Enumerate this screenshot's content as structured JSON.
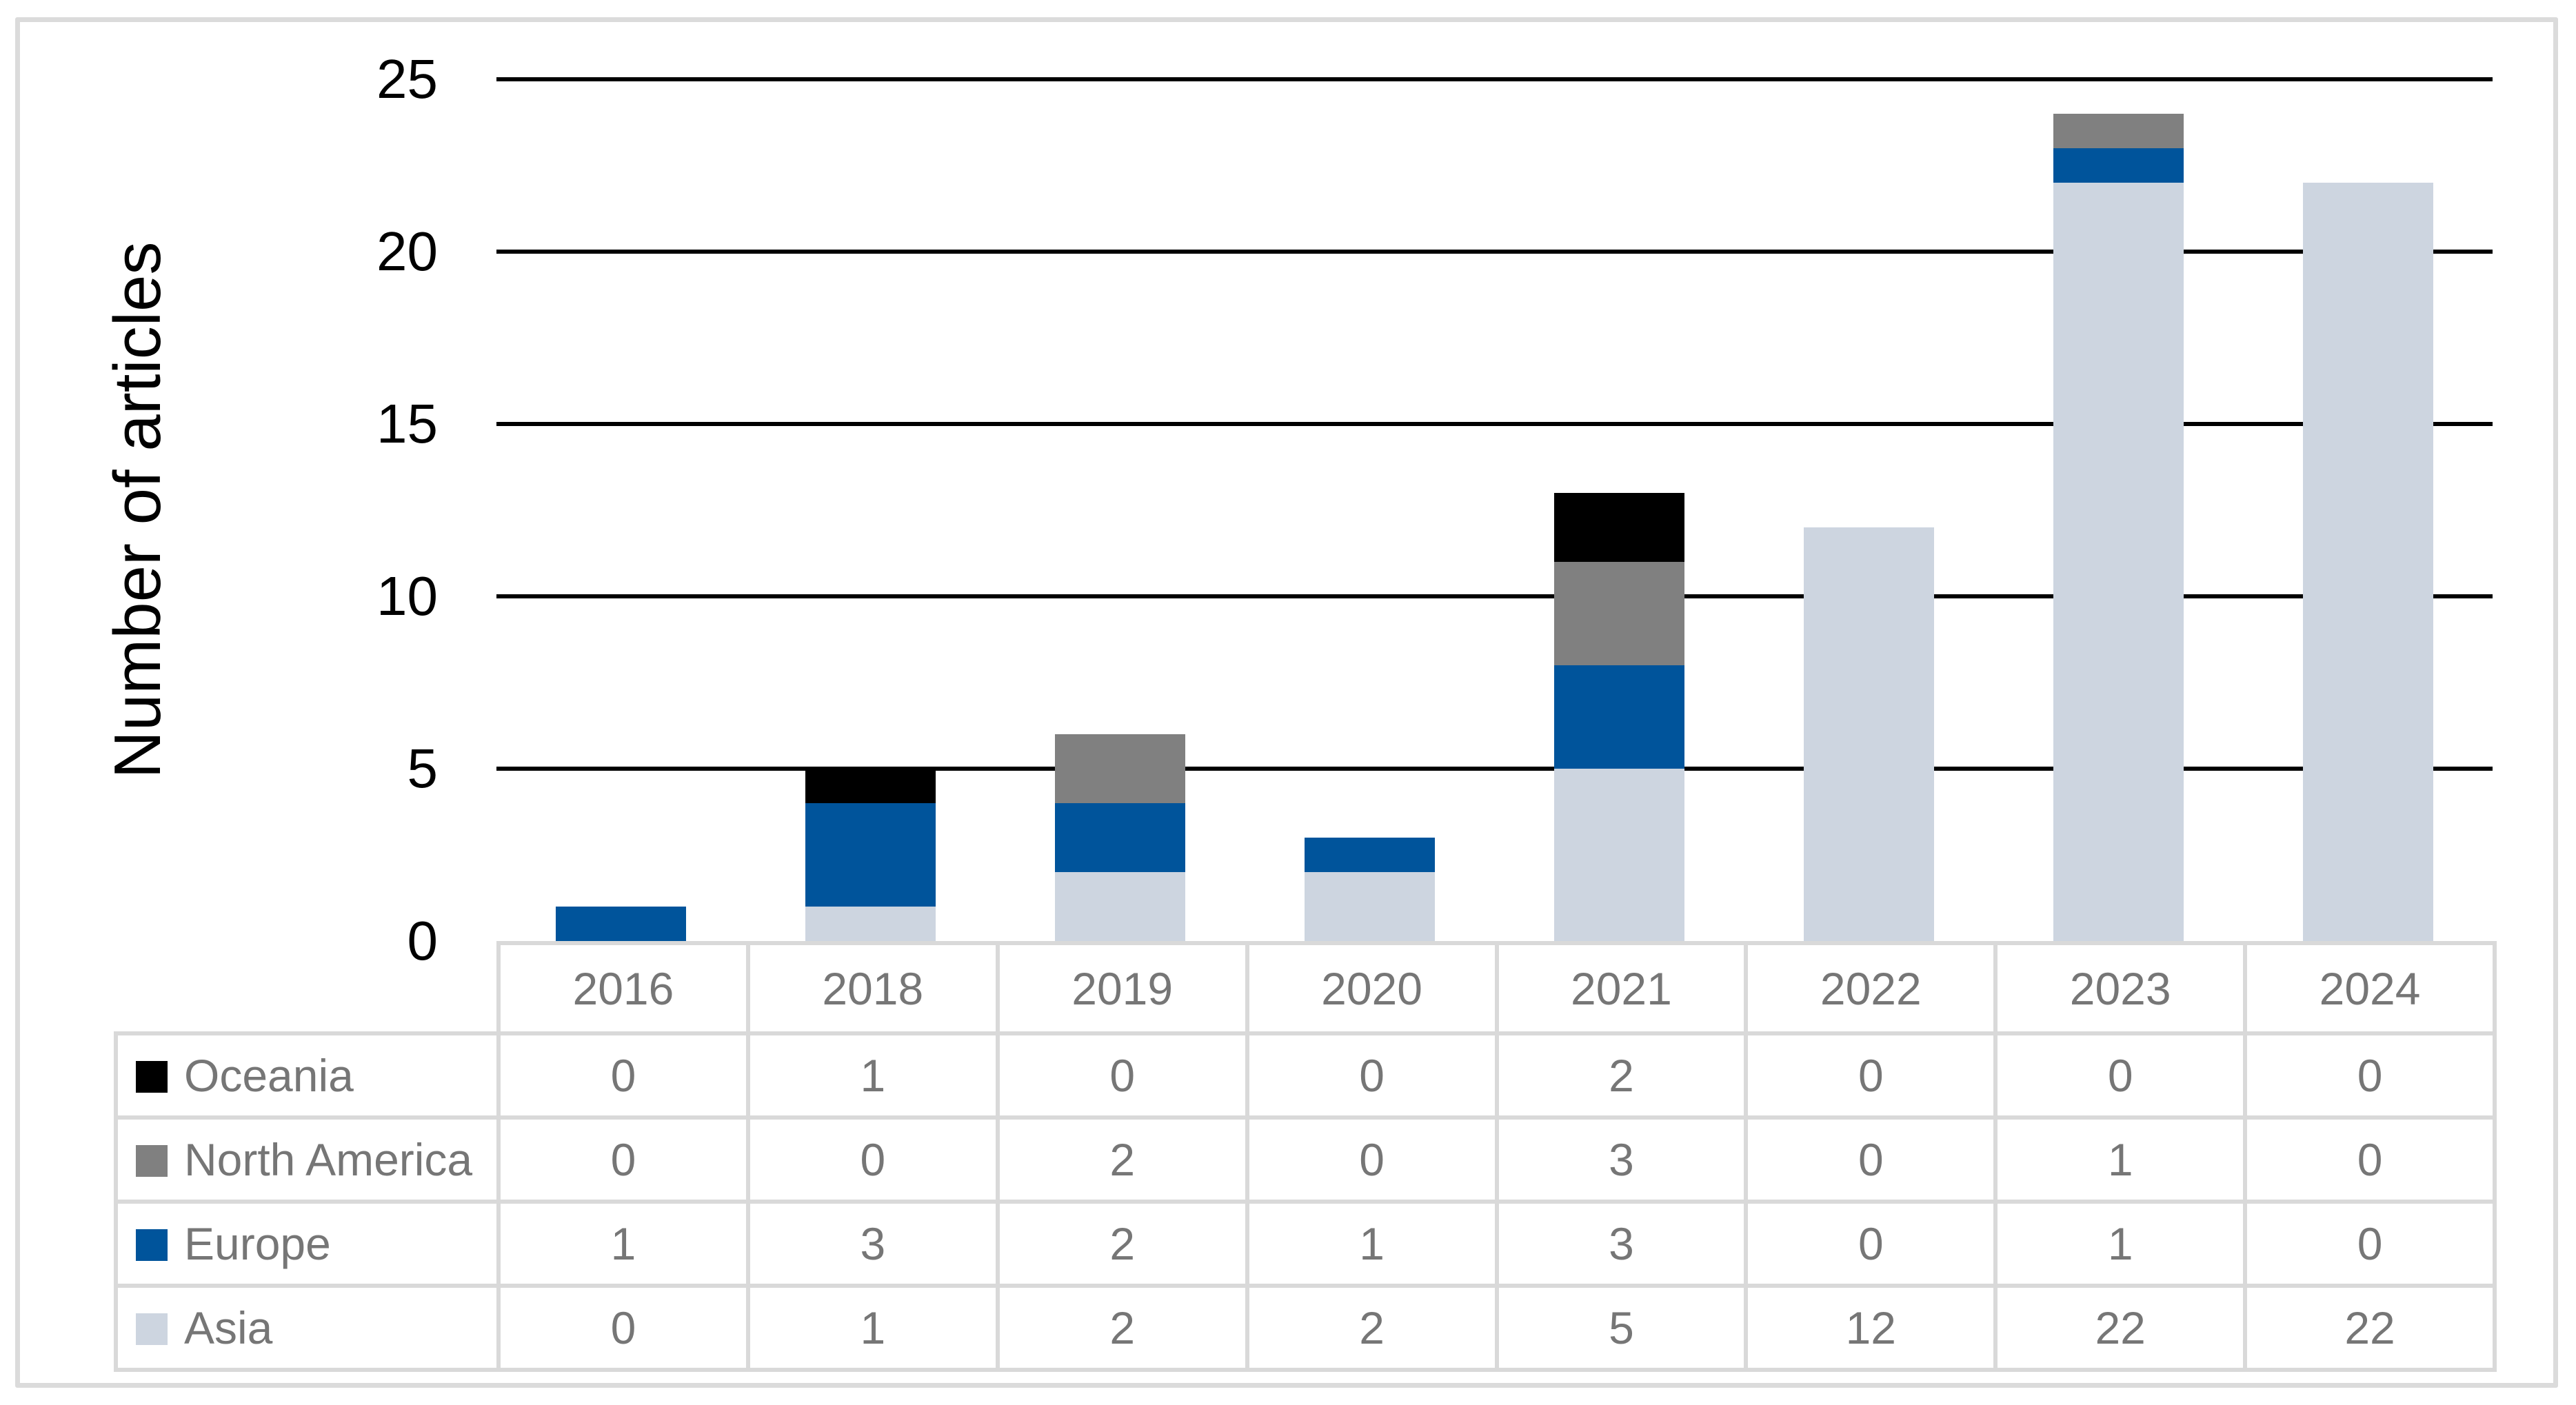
{
  "chart_data": {
    "type": "bar",
    "stacked": true,
    "title": "",
    "xlabel": "",
    "ylabel": "Number of articles",
    "categories": [
      "2016",
      "2018",
      "2019",
      "2020",
      "2021",
      "2022",
      "2023",
      "2024"
    ],
    "series": [
      {
        "name": "Oceania",
        "color": "#000000",
        "values": [
          0,
          1,
          0,
          0,
          2,
          0,
          0,
          0
        ]
      },
      {
        "name": "North America",
        "color": "#808080",
        "values": [
          0,
          0,
          2,
          0,
          3,
          0,
          1,
          0
        ]
      },
      {
        "name": "Europe",
        "color": "#00549b",
        "values": [
          1,
          3,
          2,
          1,
          3,
          0,
          1,
          0
        ]
      },
      {
        "name": "Asia",
        "color": "#cdd5e0",
        "values": [
          0,
          1,
          2,
          2,
          5,
          12,
          22,
          22
        ]
      }
    ],
    "stack_order_bottom_to_top": [
      "Asia",
      "Europe",
      "North America",
      "Oceania"
    ],
    "y_ticks": [
      0,
      5,
      10,
      15,
      20,
      25
    ],
    "ylim": [
      0,
      25
    ],
    "grid": "horizontal-black-lines",
    "legend_position": "table-left-column",
    "data_table_shown": true
  },
  "styles": {
    "gridline_color": "#000000",
    "table_border_color": "#d9d9d9",
    "frame_border_color": "#dbdbdb",
    "table_text_color": "#767676",
    "axis_text_color": "#000000"
  }
}
